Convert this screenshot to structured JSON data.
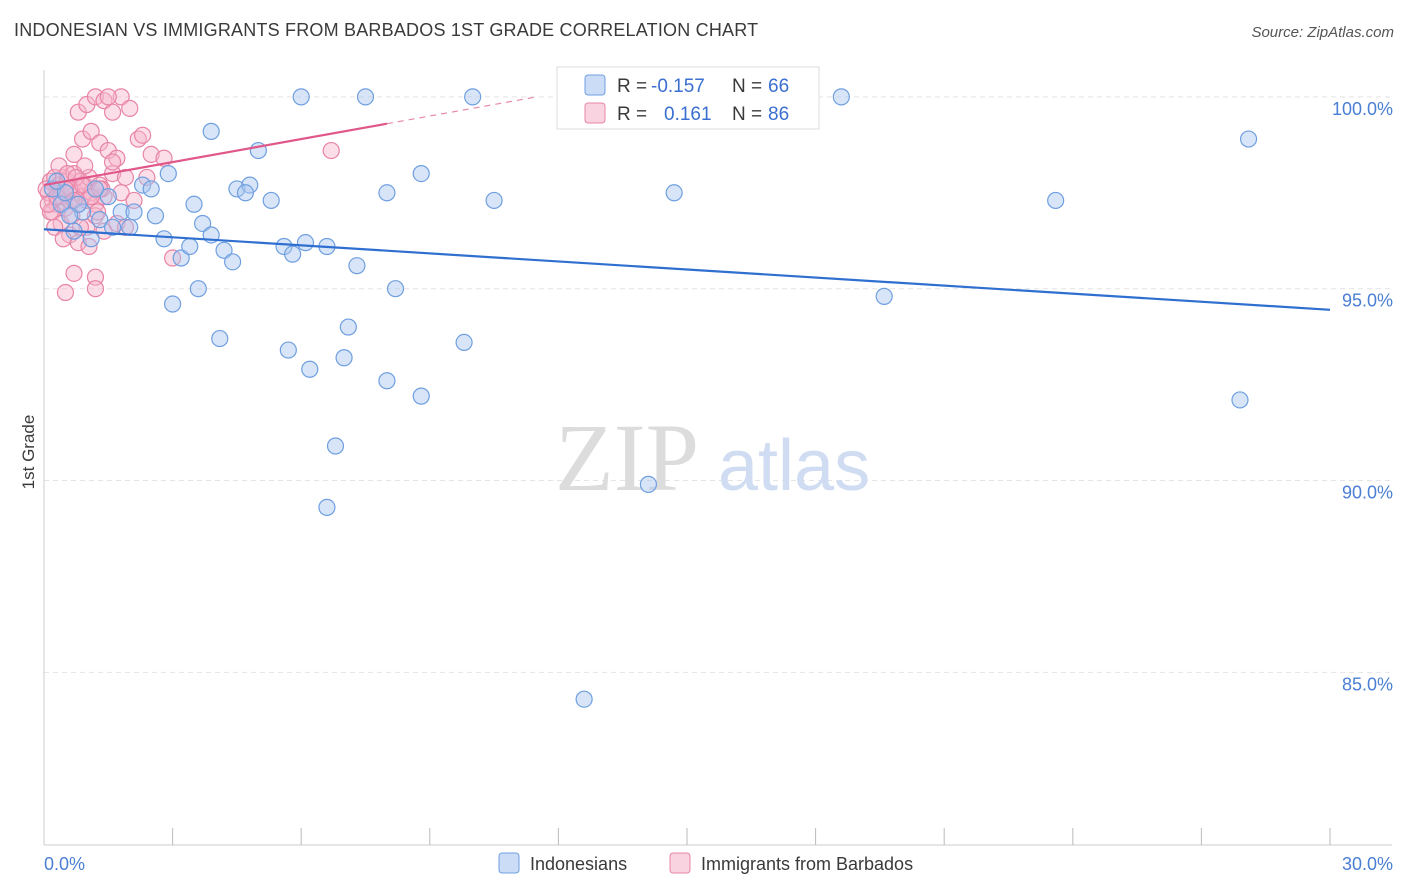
{
  "title": "INDONESIAN VS IMMIGRANTS FROM BARBADOS 1ST GRADE CORRELATION CHART",
  "source": "Source: ZipAtlas.com",
  "watermark": {
    "zip": "ZIP",
    "atlas": "atlas"
  },
  "chart_data": {
    "type": "scatter",
    "ylabel": "1st Grade",
    "xlim": [
      0.0,
      30.0
    ],
    "ylim": [
      80.5,
      100.7
    ],
    "x_tick_labels": [
      {
        "value": 0.0,
        "label": "0.0%"
      },
      {
        "value": 30.0,
        "label": "30.0%"
      }
    ],
    "x_minor_ticks": [
      3,
      6,
      9,
      12,
      15,
      18,
      21,
      24,
      27,
      30
    ],
    "y_ticks": [
      {
        "value": 100.0,
        "label": "100.0%"
      },
      {
        "value": 95.0,
        "label": "95.0%"
      },
      {
        "value": 90.0,
        "label": "90.0%"
      },
      {
        "value": 85.0,
        "label": "85.0%"
      }
    ],
    "grid": true,
    "legend_position": "top-center",
    "stats": [
      {
        "r_label": "R =",
        "r": "-0.157",
        "n_label": "N =",
        "n": "66"
      },
      {
        "r_label": "R =",
        "r": "0.161",
        "n_label": "N =",
        "n": "86"
      }
    ],
    "series": [
      {
        "name": "Indonesians",
        "color": "#a9c6f0",
        "stroke": "#6f9fe0",
        "trend": {
          "x": [
            0.0,
            30.0
          ],
          "y": [
            96.55,
            94.45
          ],
          "color": "#2f6fcf"
        },
        "points": [
          [
            0.2,
            97.6
          ],
          [
            0.4,
            97.2
          ],
          [
            0.5,
            97.5
          ],
          [
            0.7,
            96.5
          ],
          [
            0.9,
            97.0
          ],
          [
            1.1,
            96.3
          ],
          [
            1.3,
            96.8
          ],
          [
            1.5,
            97.4
          ],
          [
            1.8,
            97.0
          ],
          [
            2.0,
            96.6
          ],
          [
            2.3,
            97.7
          ],
          [
            2.6,
            96.9
          ],
          [
            2.9,
            98.0
          ],
          [
            3.2,
            95.8
          ],
          [
            3.4,
            96.1
          ],
          [
            3.5,
            97.2
          ],
          [
            3.7,
            96.7
          ],
          [
            3.9,
            96.4
          ],
          [
            4.2,
            96.0
          ],
          [
            4.5,
            97.6
          ],
          [
            4.8,
            97.7
          ],
          [
            5.0,
            98.6
          ],
          [
            5.3,
            97.3
          ],
          [
            5.6,
            96.1
          ],
          [
            5.8,
            95.9
          ],
          [
            6.1,
            96.2
          ],
          [
            6.6,
            96.1
          ],
          [
            7.3,
            95.6
          ],
          [
            8.0,
            97.5
          ],
          [
            8.2,
            95.0
          ],
          [
            8.8,
            98.0
          ],
          [
            3.0,
            94.6
          ],
          [
            3.6,
            95.0
          ],
          [
            4.1,
            93.7
          ],
          [
            5.7,
            93.4
          ],
          [
            6.2,
            92.9
          ],
          [
            7.0,
            93.2
          ],
          [
            7.1,
            94.0
          ],
          [
            8.0,
            92.6
          ],
          [
            8.8,
            92.2
          ],
          [
            9.8,
            93.6
          ],
          [
            6.8,
            90.9
          ],
          [
            6.6,
            89.3
          ],
          [
            14.1,
            89.9
          ],
          [
            12.6,
            84.3
          ],
          [
            6.0,
            100.0
          ],
          [
            7.5,
            100.0
          ],
          [
            10.0,
            100.0
          ],
          [
            18.6,
            100.0
          ],
          [
            10.5,
            97.3
          ],
          [
            14.7,
            97.5
          ],
          [
            19.6,
            94.8
          ],
          [
            23.6,
            97.3
          ],
          [
            27.9,
            92.1
          ],
          [
            28.1,
            98.9
          ],
          [
            0.8,
            97.2
          ],
          [
            1.2,
            97.6
          ],
          [
            0.6,
            96.9
          ],
          [
            3.9,
            99.1
          ],
          [
            2.1,
            97.0
          ],
          [
            1.6,
            96.6
          ],
          [
            2.8,
            96.3
          ],
          [
            4.4,
            95.7
          ],
          [
            0.3,
            97.8
          ],
          [
            2.5,
            97.6
          ],
          [
            4.7,
            97.5
          ]
        ]
      },
      {
        "name": "Immigrants from Barbados",
        "color": "#f6b6cb",
        "stroke": "#e884a6",
        "trend": {
          "x": [
            0.0,
            8.0
          ],
          "y": [
            97.7,
            99.3
          ],
          "color": "#e0588a"
        },
        "trend_ext": {
          "x": [
            8.0,
            11.5
          ],
          "y": [
            99.3,
            100.0
          ]
        },
        "points": [
          [
            0.1,
            97.5
          ],
          [
            0.15,
            97.8
          ],
          [
            0.2,
            97.3
          ],
          [
            0.25,
            97.9
          ],
          [
            0.3,
            97.6
          ],
          [
            0.3,
            97.2
          ],
          [
            0.35,
            97.7
          ],
          [
            0.4,
            97.4
          ],
          [
            0.45,
            97.9
          ],
          [
            0.5,
            97.5
          ],
          [
            0.5,
            97.1
          ],
          [
            0.55,
            97.8
          ],
          [
            0.6,
            97.3
          ],
          [
            0.65,
            97.6
          ],
          [
            0.7,
            98.0
          ],
          [
            0.75,
            97.5
          ],
          [
            0.8,
            97.2
          ],
          [
            0.85,
            97.8
          ],
          [
            0.9,
            97.4
          ],
          [
            0.95,
            97.7
          ],
          [
            1.0,
            97.3
          ],
          [
            1.05,
            97.9
          ],
          [
            1.1,
            97.5
          ],
          [
            1.2,
            97.2
          ],
          [
            1.3,
            97.7
          ],
          [
            1.4,
            97.4
          ],
          [
            1.6,
            98.0
          ],
          [
            1.8,
            97.5
          ],
          [
            0.2,
            97.0
          ],
          [
            0.4,
            96.7
          ],
          [
            0.6,
            96.4
          ],
          [
            0.8,
            96.2
          ],
          [
            1.0,
            96.6
          ],
          [
            1.2,
            96.9
          ],
          [
            1.4,
            96.5
          ],
          [
            0.7,
            98.5
          ],
          [
            0.9,
            98.9
          ],
          [
            1.1,
            99.1
          ],
          [
            1.3,
            98.8
          ],
          [
            1.5,
            98.6
          ],
          [
            1.7,
            98.4
          ],
          [
            2.2,
            98.9
          ],
          [
            2.5,
            98.5
          ],
          [
            2.3,
            99.0
          ],
          [
            0.8,
            99.6
          ],
          [
            1.0,
            99.8
          ],
          [
            1.2,
            100.0
          ],
          [
            1.4,
            99.9
          ],
          [
            1.6,
            99.6
          ],
          [
            1.8,
            100.0
          ],
          [
            2.0,
            99.7
          ],
          [
            1.5,
            100.0
          ],
          [
            0.7,
            95.4
          ],
          [
            1.2,
            95.3
          ],
          [
            0.5,
            94.9
          ],
          [
            1.2,
            95.0
          ],
          [
            3.0,
            95.8
          ],
          [
            2.8,
            98.4
          ],
          [
            6.7,
            98.6
          ],
          [
            1.9,
            97.9
          ],
          [
            2.1,
            97.3
          ],
          [
            1.7,
            96.7
          ],
          [
            0.35,
            98.2
          ],
          [
            0.55,
            98.0
          ],
          [
            0.15,
            97.0
          ],
          [
            0.25,
            96.6
          ],
          [
            0.45,
            96.3
          ],
          [
            0.65,
            96.9
          ],
          [
            0.85,
            96.6
          ],
          [
            1.05,
            96.1
          ],
          [
            1.25,
            97.0
          ],
          [
            1.35,
            97.6
          ],
          [
            0.95,
            98.2
          ],
          [
            0.75,
            97.9
          ],
          [
            0.05,
            97.6
          ],
          [
            0.1,
            97.2
          ],
          [
            1.9,
            96.6
          ],
          [
            2.4,
            97.9
          ],
          [
            0.6,
            97.6
          ],
          [
            1.6,
            98.3
          ],
          [
            0.3,
            97.4
          ],
          [
            0.5,
            97.6
          ],
          [
            0.7,
            97.3
          ],
          [
            0.9,
            97.7
          ],
          [
            1.1,
            97.4
          ],
          [
            1.3,
            97.6
          ]
        ]
      }
    ]
  },
  "bottom_legend": [
    "Indonesians",
    "Immigrants from Barbados"
  ]
}
